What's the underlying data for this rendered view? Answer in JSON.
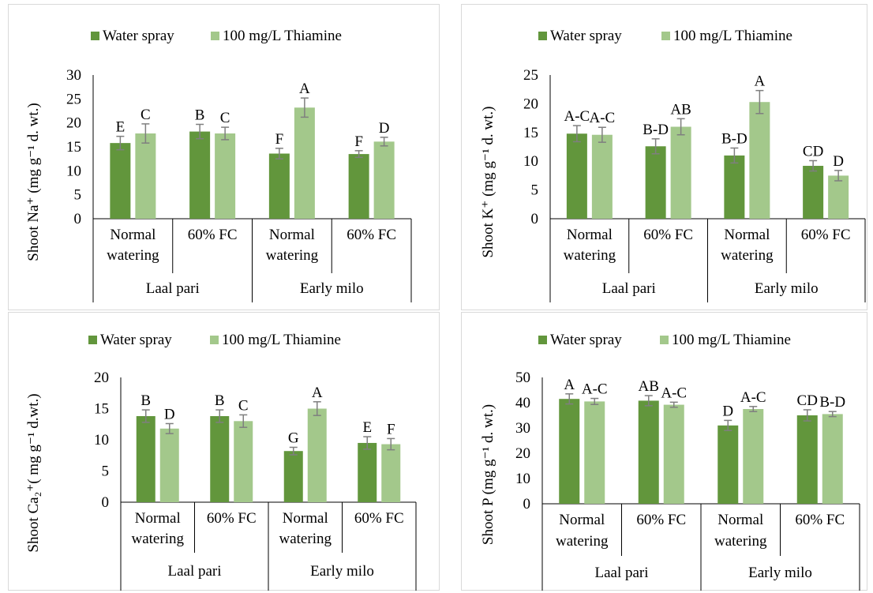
{
  "colors": {
    "water_spray": "#62963c",
    "thiamine": "#a3c88b",
    "error_bar": "#7f7f7f",
    "axis": "#000000"
  },
  "chart_data": [
    {
      "type": "bar",
      "legend": [
        "Water spray",
        "100 mg/L Thiamine"
      ],
      "ylabel": "Shoot Na⁺ (mg g⁻¹ d. wt.)",
      "ylim": [
        0,
        30
      ],
      "yticks": [
        0,
        5,
        10,
        15,
        20,
        25,
        30
      ],
      "groups": [
        {
          "label": "Laal pari",
          "subgroups": [
            {
              "label": [
                "Normal",
                "watering"
              ],
              "values": [
                15.8,
                17.8
              ],
              "errors": [
                1.4,
                2.0
              ],
              "letters": [
                "E",
                "C"
              ]
            },
            {
              "label": [
                "60% FC"
              ],
              "values": [
                18.2,
                17.8
              ],
              "errors": [
                1.5,
                1.3
              ],
              "letters": [
                "B",
                "C"
              ]
            }
          ]
        },
        {
          "label": "Early milo",
          "subgroups": [
            {
              "label": [
                "Normal",
                "watering"
              ],
              "values": [
                13.6,
                23.2
              ],
              "errors": [
                1.1,
                2.0
              ],
              "letters": [
                "F",
                "A"
              ]
            },
            {
              "label": [
                "60% FC"
              ],
              "values": [
                13.5,
                16.1
              ],
              "errors": [
                0.7,
                0.9
              ],
              "letters": [
                "F",
                "D"
              ]
            }
          ]
        }
      ]
    },
    {
      "type": "bar",
      "legend": [
        "Water spray",
        "100 mg/L Thiamine"
      ],
      "ylabel": "Shoot K⁺ (mg g⁻¹ d. wt.)",
      "ylim": [
        0,
        25
      ],
      "yticks": [
        0,
        5,
        10,
        15,
        20,
        25
      ],
      "groups": [
        {
          "label": "Laal pari",
          "subgroups": [
            {
              "label": [
                "Normal",
                "watering"
              ],
              "values": [
                14.8,
                14.6
              ],
              "errors": [
                1.4,
                1.3
              ],
              "letters": [
                "A-C",
                "A-C"
              ]
            },
            {
              "label": [
                "60% FC"
              ],
              "values": [
                12.6,
                16.0
              ],
              "errors": [
                1.3,
                1.4
              ],
              "letters": [
                "B-D",
                "AB"
              ]
            }
          ]
        },
        {
          "label": "Early milo",
          "subgroups": [
            {
              "label": [
                "Normal",
                "watering"
              ],
              "values": [
                11.0,
                20.3
              ],
              "errors": [
                1.3,
                2.0
              ],
              "letters": [
                "B-D",
                "A"
              ]
            },
            {
              "label": [
                "60% FC"
              ],
              "values": [
                9.2,
                7.5
              ],
              "errors": [
                0.9,
                0.9
              ],
              "letters": [
                "CD",
                "D"
              ]
            }
          ]
        }
      ]
    },
    {
      "type": "bar",
      "legend": [
        "Water spray",
        "100 mg/L Thiamine"
      ],
      "ylabel": "Shoot Ca₂⁺( mg g⁻¹ d.wt.)",
      "ylim": [
        0,
        20
      ],
      "yticks": [
        0,
        5,
        10,
        15,
        20
      ],
      "groups": [
        {
          "label": "Laal pari",
          "subgroups": [
            {
              "label": [
                "Normal",
                "watering"
              ],
              "values": [
                13.8,
                11.8
              ],
              "errors": [
                1.0,
                0.8
              ],
              "letters": [
                "B",
                "D"
              ]
            },
            {
              "label": [
                "60% FC"
              ],
              "values": [
                13.8,
                13.0
              ],
              "errors": [
                1.0,
                1.0
              ],
              "letters": [
                "B",
                "C"
              ]
            }
          ]
        },
        {
          "label": "Early milo",
          "subgroups": [
            {
              "label": [
                "Normal",
                "watering"
              ],
              "values": [
                8.2,
                15.0
              ],
              "errors": [
                0.6,
                1.1
              ],
              "letters": [
                "G",
                "A"
              ]
            },
            {
              "label": [
                "60% FC"
              ],
              "values": [
                9.5,
                9.3
              ],
              "errors": [
                1.0,
                0.9
              ],
              "letters": [
                "E",
                "F"
              ]
            }
          ]
        }
      ]
    },
    {
      "type": "bar",
      "legend": [
        "Water spray",
        "100 mg/L Thiamine"
      ],
      "ylabel": "Shoot P  (mg g⁻¹ d. wt.)",
      "ylim": [
        0,
        50
      ],
      "yticks": [
        0,
        10,
        20,
        30,
        40,
        50
      ],
      "groups": [
        {
          "label": "Laal pari",
          "subgroups": [
            {
              "label": [
                "Normal",
                "watering"
              ],
              "values": [
                41.5,
                40.5
              ],
              "errors": [
                2.0,
                1.2
              ],
              "letters": [
                "A",
                "A-C"
              ]
            },
            {
              "label": [
                "60% FC"
              ],
              "values": [
                40.8,
                39.2
              ],
              "errors": [
                2.0,
                1.0
              ],
              "letters": [
                "AB",
                "A-C"
              ]
            }
          ]
        },
        {
          "label": "Early milo",
          "subgroups": [
            {
              "label": [
                "Normal",
                "watering"
              ],
              "values": [
                31.0,
                37.5
              ],
              "errors": [
                2.0,
                1.0
              ],
              "letters": [
                "D",
                "A-C"
              ]
            },
            {
              "label": [
                "60% FC"
              ],
              "values": [
                35.0,
                35.5
              ],
              "errors": [
                2.2,
                1.0
              ],
              "letters": [
                "CD",
                "B-D"
              ]
            }
          ]
        }
      ]
    }
  ]
}
